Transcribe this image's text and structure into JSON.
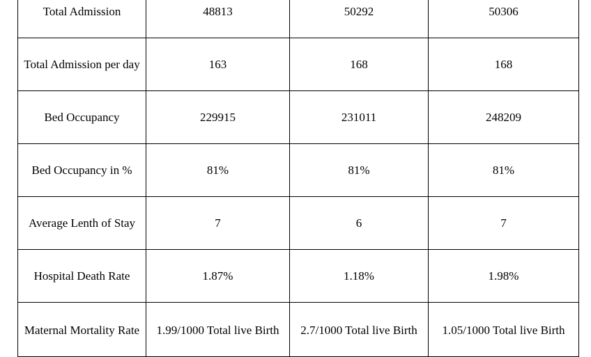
{
  "table": {
    "rows": [
      {
        "label": "Total Admission",
        "values": [
          "48813",
          "50292",
          "50306"
        ]
      },
      {
        "label": "Total Admission per day",
        "values": [
          "163",
          "168",
          "168"
        ]
      },
      {
        "label": "Bed Occupancy",
        "values": [
          "229915",
          "231011",
          "248209"
        ]
      },
      {
        "label": "Bed Occupancy in %",
        "values": [
          "81%",
          "81%",
          "81%"
        ]
      },
      {
        "label": "Average Lenth of Stay",
        "values": [
          "7",
          "6",
          "7"
        ]
      },
      {
        "label": "Hospital Death Rate",
        "values": [
          "1.87%",
          "1.18%",
          "1.98%"
        ]
      },
      {
        "label": "Maternal Mortality Rate",
        "values": [
          "1.99/1000 Total live Birth",
          "2.7/1000 Total live Birth",
          "1.05/1000 Total live Birth"
        ]
      }
    ]
  }
}
